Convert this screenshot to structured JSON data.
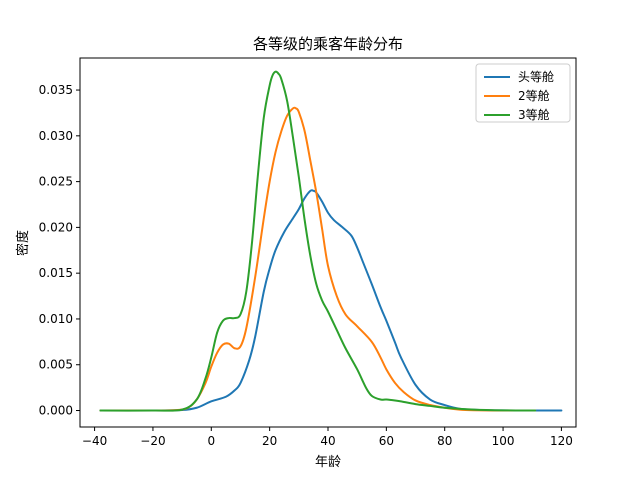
{
  "chart_data": {
    "type": "line",
    "title": "各等级的乘客年龄分布",
    "xlabel": "年龄",
    "ylabel": "密度",
    "xlim": [
      -45,
      125
    ],
    "ylim": [
      -0.0018,
      0.0385
    ],
    "xticks": [
      -40,
      -20,
      0,
      20,
      40,
      60,
      80,
      100,
      120
    ],
    "xtick_labels": [
      "−40",
      "−20",
      "0",
      "20",
      "40",
      "60",
      "80",
      "100",
      "120"
    ],
    "yticks": [
      0.0,
      0.005,
      0.01,
      0.015,
      0.02,
      0.025,
      0.03,
      0.035
    ],
    "ytick_labels": [
      "0.000",
      "0.005",
      "0.010",
      "0.015",
      "0.020",
      "0.025",
      "0.030",
      "0.035"
    ],
    "legend_position": "top-right",
    "grid": false,
    "series": [
      {
        "name": "头等舱",
        "color": "#1f77b4",
        "x": [
          -38,
          -20,
          -10,
          -5,
          0,
          5,
          8,
          10,
          13,
          15,
          18,
          20,
          22,
          25,
          28,
          30,
          32,
          34,
          35,
          36,
          38,
          40,
          42,
          45,
          48,
          50,
          52,
          55,
          58,
          60,
          63,
          65,
          70,
          75,
          80,
          85,
          90,
          95,
          100,
          110,
          120
        ],
        "y": [
          0,
          0,
          5e-05,
          0.0003,
          0.001,
          0.0015,
          0.0022,
          0.003,
          0.0055,
          0.008,
          0.013,
          0.0155,
          0.0175,
          0.0195,
          0.021,
          0.022,
          0.0232,
          0.024,
          0.024,
          0.0238,
          0.0228,
          0.0216,
          0.0208,
          0.02,
          0.0191,
          0.0178,
          0.0162,
          0.0138,
          0.0113,
          0.0098,
          0.0074,
          0.0058,
          0.0028,
          0.0012,
          0.0006,
          0.0002,
          8e-05,
          3e-05,
          1e-05,
          0,
          0
        ]
      },
      {
        "name": "2等舱",
        "color": "#ff7f0e",
        "x": [
          -38,
          -20,
          -12,
          -8,
          -5,
          -2,
          0,
          2,
          4,
          6,
          8,
          10,
          12,
          15,
          18,
          20,
          22,
          24,
          26,
          28,
          29,
          30,
          32,
          34,
          36,
          38,
          40,
          43,
          46,
          50,
          55,
          58,
          60,
          63,
          66,
          70,
          75,
          80,
          85,
          90,
          100,
          111
        ],
        "y": [
          0,
          0,
          5e-05,
          0.0003,
          0.0012,
          0.003,
          0.0048,
          0.0063,
          0.0072,
          0.0073,
          0.0068,
          0.007,
          0.009,
          0.0145,
          0.021,
          0.025,
          0.0282,
          0.0305,
          0.0322,
          0.033,
          0.033,
          0.0326,
          0.0305,
          0.0272,
          0.0238,
          0.0198,
          0.0158,
          0.0125,
          0.0105,
          0.0092,
          0.0075,
          0.0058,
          0.0045,
          0.003,
          0.002,
          0.0011,
          0.0006,
          0.0003,
          0.0001,
          3e-05,
          0,
          0
        ]
      },
      {
        "name": "3等舱",
        "color": "#2ca02c",
        "x": [
          -38,
          -20,
          -10,
          -5,
          -2,
          0,
          2,
          4,
          6,
          8,
          10,
          12,
          14,
          16,
          18,
          20,
          21,
          22,
          23,
          24,
          26,
          28,
          30,
          32,
          34,
          36,
          38,
          40,
          43,
          46,
          50,
          53,
          55,
          58,
          60,
          63,
          65,
          70,
          75,
          80,
          90,
          100,
          111
        ],
        "y": [
          0,
          0,
          0.0001,
          0.0012,
          0.0035,
          0.0058,
          0.0085,
          0.0098,
          0.0101,
          0.0101,
          0.0105,
          0.013,
          0.0185,
          0.0258,
          0.032,
          0.0355,
          0.0366,
          0.037,
          0.0368,
          0.0362,
          0.0338,
          0.0298,
          0.0255,
          0.0208,
          0.0168,
          0.0138,
          0.012,
          0.0108,
          0.0088,
          0.0068,
          0.0045,
          0.0025,
          0.0016,
          0.0012,
          0.0012,
          0.0011,
          0.001,
          0.0007,
          0.0005,
          0.0003,
          0.0001,
          2e-05,
          0
        ]
      }
    ]
  }
}
